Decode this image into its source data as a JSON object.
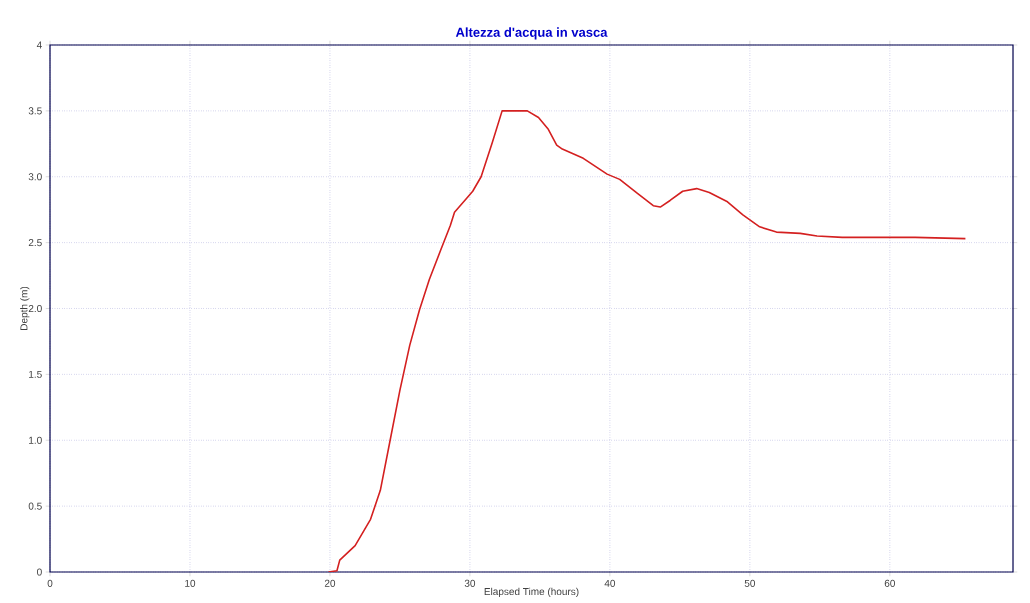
{
  "chart_data": {
    "type": "line",
    "title": "Altezza d'acqua in vasca",
    "xlabel": "Elapsed Time (hours)",
    "ylabel": "Depth (m)",
    "xlim": [
      0,
      68.8
    ],
    "ylim": [
      0,
      4
    ],
    "xticks": [
      0,
      10,
      20,
      30,
      40,
      50,
      60
    ],
    "yticks": [
      0,
      0.5,
      {
        "value": 1,
        "label": "1.0"
      },
      1.5,
      {
        "value": 2,
        "label": "2.0"
      },
      2.5,
      {
        "value": 3,
        "label": "3.0"
      },
      3.5,
      4
    ],
    "grid": true,
    "line_style": "solid",
    "series": [
      {
        "color": "#d42020",
        "x": [
          19.9,
          20.5,
          20.7,
          21.8,
          22.9,
          23.6,
          24.3,
          25.0,
          25.7,
          26.4,
          27.1,
          27.9,
          28.6,
          28.9,
          29.8,
          30.2,
          30.8,
          31.6,
          32.3,
          34.1,
          34.9,
          35.6,
          36.2,
          36.6,
          38.1,
          39.8,
          40.7,
          41.9,
          43.1,
          43.6,
          44.3,
          45.2,
          46.2,
          47.1,
          48.4,
          49.5,
          50.7,
          51.9,
          53.6,
          54.8,
          56.6,
          59.5,
          61.8,
          65.4
        ],
        "values": [
          0,
          0.01,
          0.09,
          0.2,
          0.4,
          0.62,
          1.0,
          1.38,
          1.72,
          1.99,
          2.22,
          2.44,
          2.63,
          2.73,
          2.84,
          2.89,
          3.0,
          3.26,
          3.5,
          3.5,
          3.45,
          3.36,
          3.24,
          3.21,
          3.14,
          3.02,
          2.98,
          2.88,
          2.78,
          2.77,
          2.82,
          2.89,
          2.91,
          2.88,
          2.81,
          2.71,
          2.62,
          2.58,
          2.57,
          2.55,
          2.54,
          2.54,
          2.54,
          2.53
        ]
      }
    ]
  }
}
